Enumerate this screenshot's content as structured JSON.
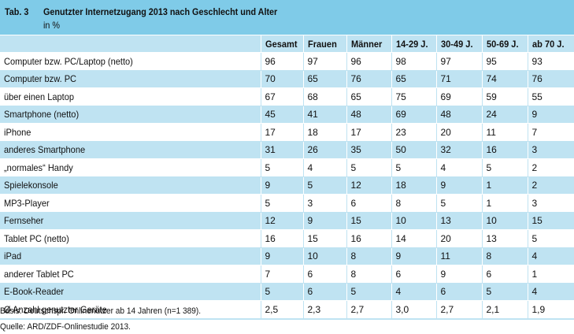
{
  "table": {
    "number": "Tab. 3",
    "title": "Genutzter Internetzugang 2013 nach Geschlecht und Alter",
    "unit": "in %",
    "columns": [
      "Gesamt",
      "Frauen",
      "Männer",
      "14-29 J.",
      "30-49 J.",
      "50-69 J.",
      "ab 70 J."
    ],
    "rows": [
      {
        "label": "Computer bzw. PC/Laptop (netto)",
        "values": [
          "96",
          "97",
          "96",
          "98",
          "97",
          "95",
          "93"
        ]
      },
      {
        "label": "Computer bzw. PC",
        "values": [
          "70",
          "65",
          "76",
          "65",
          "71",
          "74",
          "76"
        ]
      },
      {
        "label": "über einen Laptop",
        "values": [
          "67",
          "68",
          "65",
          "75",
          "69",
          "59",
          "55"
        ]
      },
      {
        "label": "Smartphone (netto)",
        "values": [
          "45",
          "41",
          "48",
          "69",
          "48",
          "24",
          "9"
        ]
      },
      {
        "label": "iPhone",
        "values": [
          "17",
          "18",
          "17",
          "23",
          "20",
          "11",
          "7"
        ]
      },
      {
        "label": "anderes Smartphone",
        "values": [
          "31",
          "26",
          "35",
          "50",
          "32",
          "16",
          "3"
        ]
      },
      {
        "label": "„normales“ Handy",
        "values": [
          "5",
          "4",
          "5",
          "5",
          "4",
          "5",
          "2"
        ]
      },
      {
        "label": "Spielekonsole",
        "values": [
          "9",
          "5",
          "12",
          "18",
          "9",
          "1",
          "2"
        ]
      },
      {
        "label": "MP3-Player",
        "values": [
          "5",
          "3",
          "6",
          "8",
          "5",
          "1",
          "3"
        ]
      },
      {
        "label": "Fernseher",
        "values": [
          "12",
          "9",
          "15",
          "10",
          "13",
          "10",
          "15"
        ]
      },
      {
        "label": "Tablet PC (netto)",
        "values": [
          "16",
          "15",
          "16",
          "14",
          "20",
          "13",
          "5"
        ]
      },
      {
        "label": "iPad",
        "values": [
          "9",
          "10",
          "8",
          "9",
          "11",
          "8",
          "4"
        ]
      },
      {
        "label": "anderer Tablet PC",
        "values": [
          "7",
          "6",
          "8",
          "6",
          "9",
          "6",
          "1"
        ]
      },
      {
        "label": "E-Book-Reader",
        "values": [
          "5",
          "6",
          "5",
          "4",
          "6",
          "5",
          "4"
        ]
      },
      {
        "label": "Ø Anzahl genutzter Geräte",
        "values": [
          "2,5",
          "2,3",
          "2,7",
          "3,0",
          "2,7",
          "2,1",
          "1,9"
        ]
      }
    ]
  },
  "footnotes": {
    "basis": "Basis: Deutschspr. Onlinenutzer ab 14 Jahren (n=1 389).",
    "source": "Quelle: ARD/ZDF-Onlinestudie 2013."
  },
  "colors": {
    "title_bar": "#7fcbe8",
    "band": "#bfe3f2"
  }
}
